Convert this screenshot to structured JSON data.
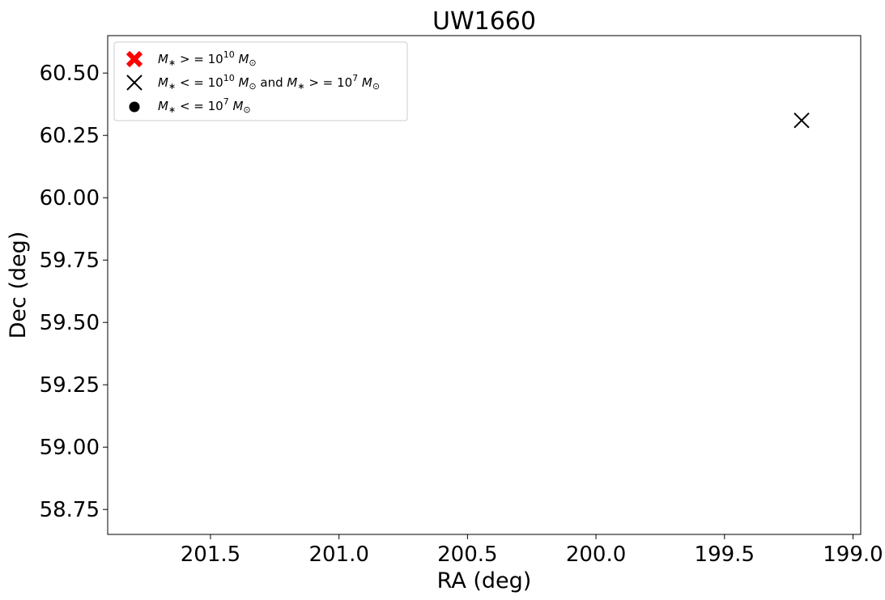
{
  "chart_data": {
    "type": "scatter",
    "title": "UW1660",
    "xlabel": "RA (deg)",
    "ylabel": "Dec (deg)",
    "xlim": [
      201.9,
      198.97
    ],
    "ylim": [
      58.65,
      60.65
    ],
    "x_inverted": true,
    "grid": false,
    "legend_position": "top-left",
    "xticks": [
      201.5,
      201.0,
      200.5,
      200.0,
      199.5,
      199.0
    ],
    "xtick_labels": [
      "201.5",
      "201.0",
      "200.5",
      "200.0",
      "199.5",
      "199.0"
    ],
    "yticks": [
      58.75,
      59.0,
      59.25,
      59.5,
      59.75,
      60.0,
      60.25,
      60.5
    ],
    "ytick_labels": [
      "58.75",
      "59.00",
      "59.25",
      "59.50",
      "59.75",
      "60.00",
      "60.25",
      "60.50"
    ],
    "series": [
      {
        "name": "M* >= 10^10 Msun",
        "legend_main": "M",
        "legend_tail": " > = 10",
        "legend_exp": "10",
        "marker": "bold-x",
        "color": "#ff0000",
        "points": []
      },
      {
        "name": "M* <= 10^10 Msun and M* >= 10^7 Msun",
        "legend_main": "M",
        "legend_tail1": " < = 10",
        "legend_exp1": "10",
        "legend_mid": " and ",
        "legend_tail2": " > = 10",
        "legend_exp2": "7",
        "marker": "x",
        "color": "#000000",
        "points": [
          {
            "x": 199.2,
            "y": 60.31
          }
        ]
      },
      {
        "name": "M* <= 10^7 Msun",
        "legend_main": "M",
        "legend_tail": " < = 10",
        "legend_exp": "7",
        "marker": "circle",
        "color": "#000000",
        "points": []
      }
    ]
  }
}
